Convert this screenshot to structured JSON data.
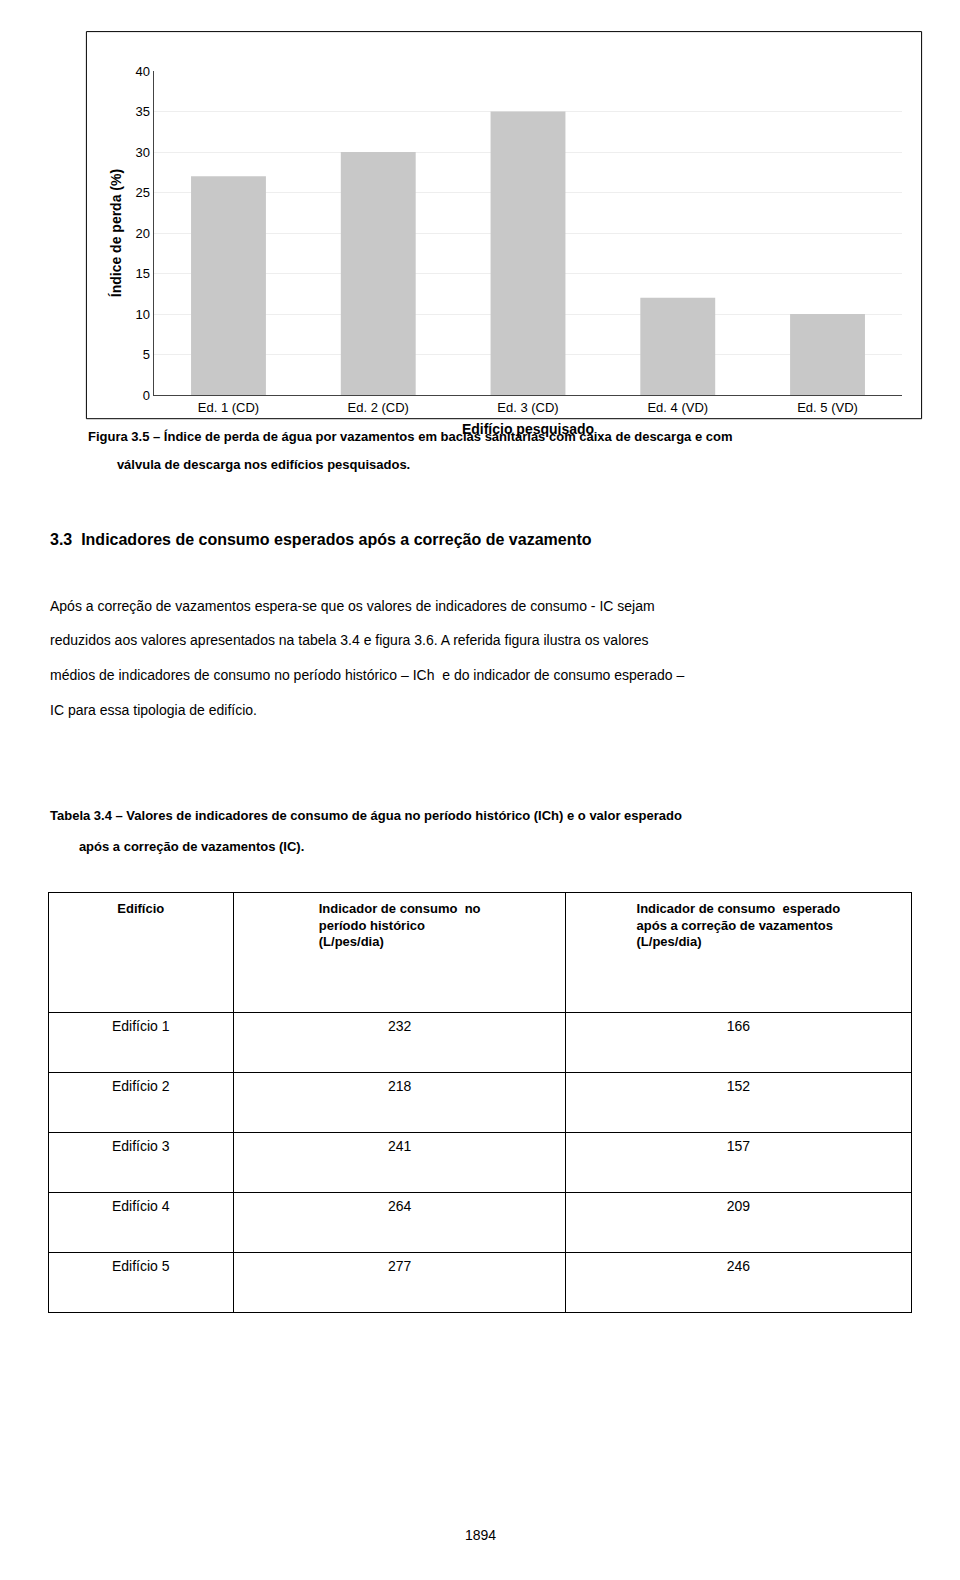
{
  "chart_data": [
    {
      "type": "bar",
      "categories": [
        "Ed. 1 (CD)",
        "Ed. 2 (CD)",
        "Ed. 3 (CD)",
        "Ed. 4 (VD)",
        "Ed. 5 (VD)"
      ],
      "values": [
        27,
        30,
        35,
        12,
        10
      ],
      "color": "#c8c8c8",
      "xlabel": "Edifício pesquisado",
      "ylabel": "Índice de perda (%)",
      "ylim": [
        0,
        40
      ],
      "yticks": [
        0,
        5,
        10,
        15,
        20,
        25,
        30,
        35,
        40
      ],
      "grid": true,
      "annotations": [
        "Figura 3.5 – Índice de perda de água por vazamentos em bacias sanitárias com caixa de descarga e com",
        "        válvula de descarga nos edifícios pesquisados.",
        "3.3  Indicadores de consumo esperados após a correção de vazamento",
        "Após a correção de vazamentos espera-se que os valores de indicadores de consumo - IC sejam",
        "reduzidos aos valores apresentados na tabela 3.4 e figura 3.6. A referida figura ilustra os valores",
        "médios de indicadores de consumo no período histórico – ICh  e do indicador de consumo esperado –",
        "IC para essa tipologia de edifício.",
        "Tabela 3.4 – Valores de indicadores de consumo de água no período histórico (ICh) e o valor esperado",
        "        após a correção de vazamentos (IC).",
        "1894"
      ]
    },
    {
      "type": "table",
      "xlabel": "Edifício",
      "categories": [
        "Edifício 1",
        "Edifício 2",
        "Edifício 3",
        "Edifício 4",
        "Edifício 5"
      ],
      "series": [
        {
          "name": "Indicador de consumo  no\nperíodo histórico\n(L/pes/dia)",
          "values": [
            232,
            218,
            241,
            264,
            277
          ]
        },
        {
          "name": "Indicador de consumo  esperado\napós a correção de vazamentos\n(L/pes/dia)",
          "values": [
            166,
            152,
            157,
            209,
            246
          ]
        }
      ]
    }
  ]
}
